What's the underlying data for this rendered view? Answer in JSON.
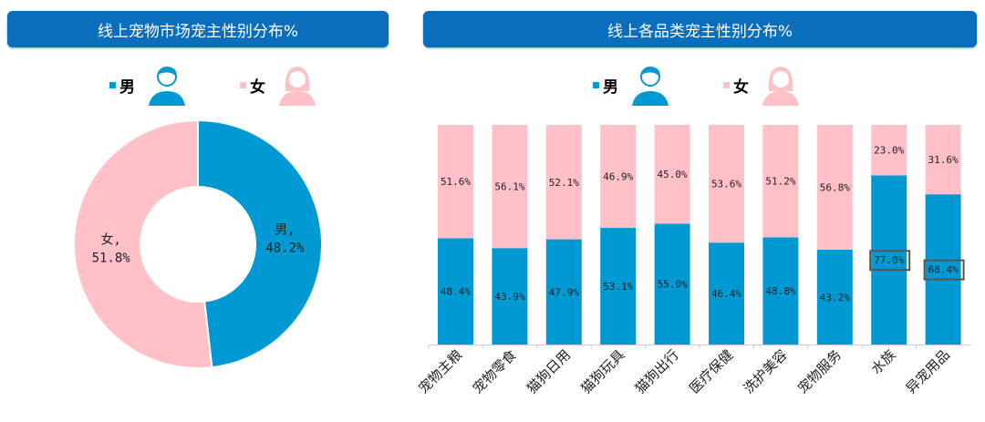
{
  "colors": {
    "male": "#0099d4",
    "female": "#ffc0c8",
    "banner": "#0a6ebd"
  },
  "left_title": "线上宠物市场宠主性别分布%",
  "right_title": "线上各品类宠主性别分布%",
  "legend": {
    "male": "男",
    "female": "女",
    "male_icon": "male-user-icon",
    "female_icon": "female-user-icon"
  },
  "chart_data": [
    {
      "type": "pie",
      "donut": true,
      "title": "线上宠物市场宠主性别分布%",
      "slices": [
        {
          "name": "男",
          "value": 48.2,
          "label_name": "男,",
          "label_value": "48.2%"
        },
        {
          "name": "女",
          "value": 51.8,
          "label_name": "女,",
          "label_value": "51.8%"
        }
      ]
    },
    {
      "type": "bar",
      "stacked": true,
      "title": "线上各品类宠主性别分布%",
      "ylim": [
        0,
        100
      ],
      "categories": [
        "宠物主粮",
        "宠物零食",
        "猫狗日用",
        "猫狗玩具",
        "猫狗出行",
        "医疗保健",
        "洗护美容",
        "宠物服务",
        "水族",
        "异宠用品"
      ],
      "series": [
        {
          "name": "男",
          "values": [
            48.4,
            43.9,
            47.9,
            53.1,
            55.0,
            46.4,
            48.8,
            43.2,
            77.0,
            68.4
          ],
          "labels": [
            "48.4%",
            "43.9%",
            "47.9%",
            "53.1%",
            "55.0%",
            "46.4%",
            "48.8%",
            "43.2%",
            "77.0%",
            "68.4%"
          ]
        },
        {
          "name": "女",
          "values": [
            51.6,
            56.1,
            52.1,
            46.9,
            45.0,
            53.6,
            51.2,
            56.8,
            23.0,
            31.6
          ],
          "labels": [
            "51.6%",
            "56.1%",
            "52.1%",
            "46.9%",
            "45.0%",
            "53.6%",
            "51.2%",
            "56.8%",
            "23.0%",
            "31.6%"
          ]
        }
      ],
      "highlighted": [
        "77.0%",
        "68.4%"
      ]
    }
  ]
}
